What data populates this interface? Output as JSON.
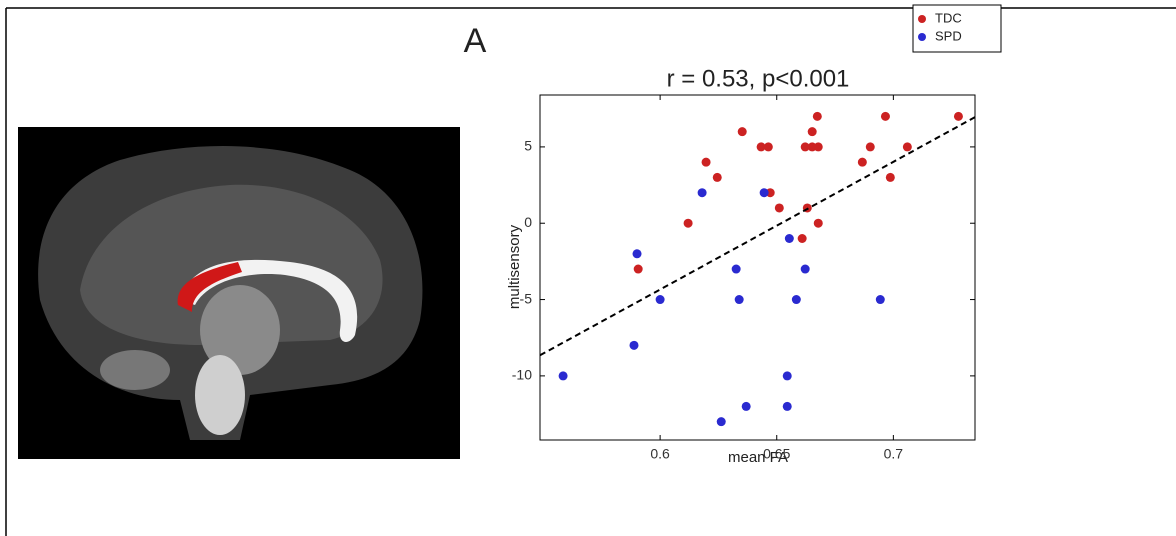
{
  "chart_data": {
    "type": "scatter",
    "panel_label": "A",
    "title": "r = 0.53, p<0.001",
    "x_label": "mean FA",
    "y_label": "multisensory",
    "xlim": [
      0.5485,
      0.735
    ],
    "ylim": [
      -14.2,
      8.4
    ],
    "xticks": [
      0.6,
      0.65,
      0.7
    ],
    "yticks": [
      -10,
      -5,
      0,
      5
    ],
    "legend": "top-right",
    "series": [
      {
        "name": "TDC",
        "color": "#cc2222",
        "x": [
          0.5906,
          0.612,
          0.6197,
          0.6245,
          0.6352,
          0.6433,
          0.6464,
          0.6622,
          0.6652,
          0.6678,
          0.6472,
          0.6511,
          0.6631,
          0.6609,
          0.6678,
          0.6652,
          0.6674,
          0.6867,
          0.6901,
          0.6966,
          0.6987,
          0.706,
          0.7279
        ],
        "values": [
          -3,
          0,
          4,
          3,
          6,
          5,
          5,
          5,
          5,
          5,
          2,
          1,
          1,
          -1,
          0,
          6,
          7,
          4,
          5,
          7,
          3,
          5,
          7
        ]
      },
      {
        "name": "SPD",
        "color": "#2a2ad0",
        "x": [
          0.5584,
          0.5901,
          0.5888,
          0.6,
          0.618,
          0.6262,
          0.6326,
          0.6339,
          0.6369,
          0.6446,
          0.6554,
          0.6545,
          0.6545,
          0.6584,
          0.6622,
          0.6944
        ],
        "values": [
          -10,
          -2,
          -8,
          -5,
          2,
          -13,
          -3,
          -5,
          -12,
          2,
          -1,
          -10,
          -12,
          -5,
          -3,
          -5
        ]
      }
    ],
    "fit_line": {
      "x": [
        0.5485,
        0.735
      ],
      "values": [
        -8.65,
        6.95
      ]
    }
  }
}
